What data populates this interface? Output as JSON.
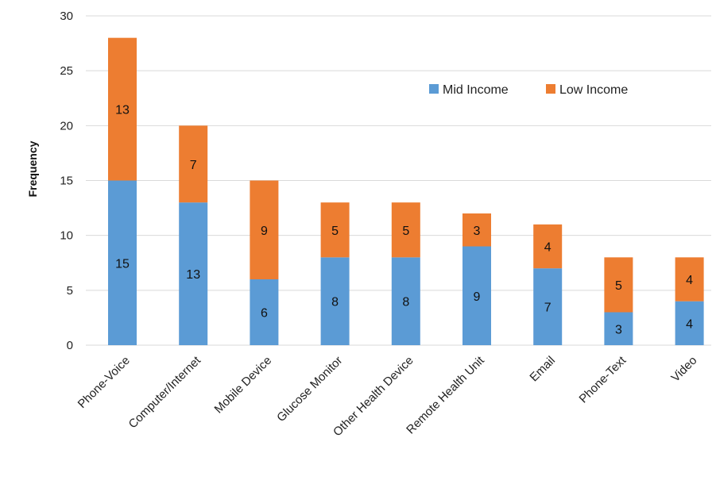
{
  "chart_data": {
    "type": "bar",
    "stacked": true,
    "categories": [
      "Phone-Voice",
      "Computer/Internet",
      "Mobile Device",
      "Glucose Monitor",
      "Other Health Device",
      "Remote Health Unit",
      "Email",
      "Phone-Text",
      "Video"
    ],
    "series": [
      {
        "name": "Mid Income",
        "values": [
          15,
          13,
          6,
          8,
          8,
          9,
          7,
          3,
          4
        ],
        "color": "#5b9bd5"
      },
      {
        "name": "Low Income",
        "values": [
          13,
          7,
          9,
          5,
          5,
          3,
          4,
          5,
          4
        ],
        "color": "#ed7d31"
      }
    ],
    "ylabel": "Frequency",
    "xlabel": "",
    "ylim": [
      0,
      30
    ],
    "yticks": [
      0,
      5,
      10,
      15,
      20,
      25,
      30
    ],
    "grid": true,
    "legend_position": "top-right"
  }
}
